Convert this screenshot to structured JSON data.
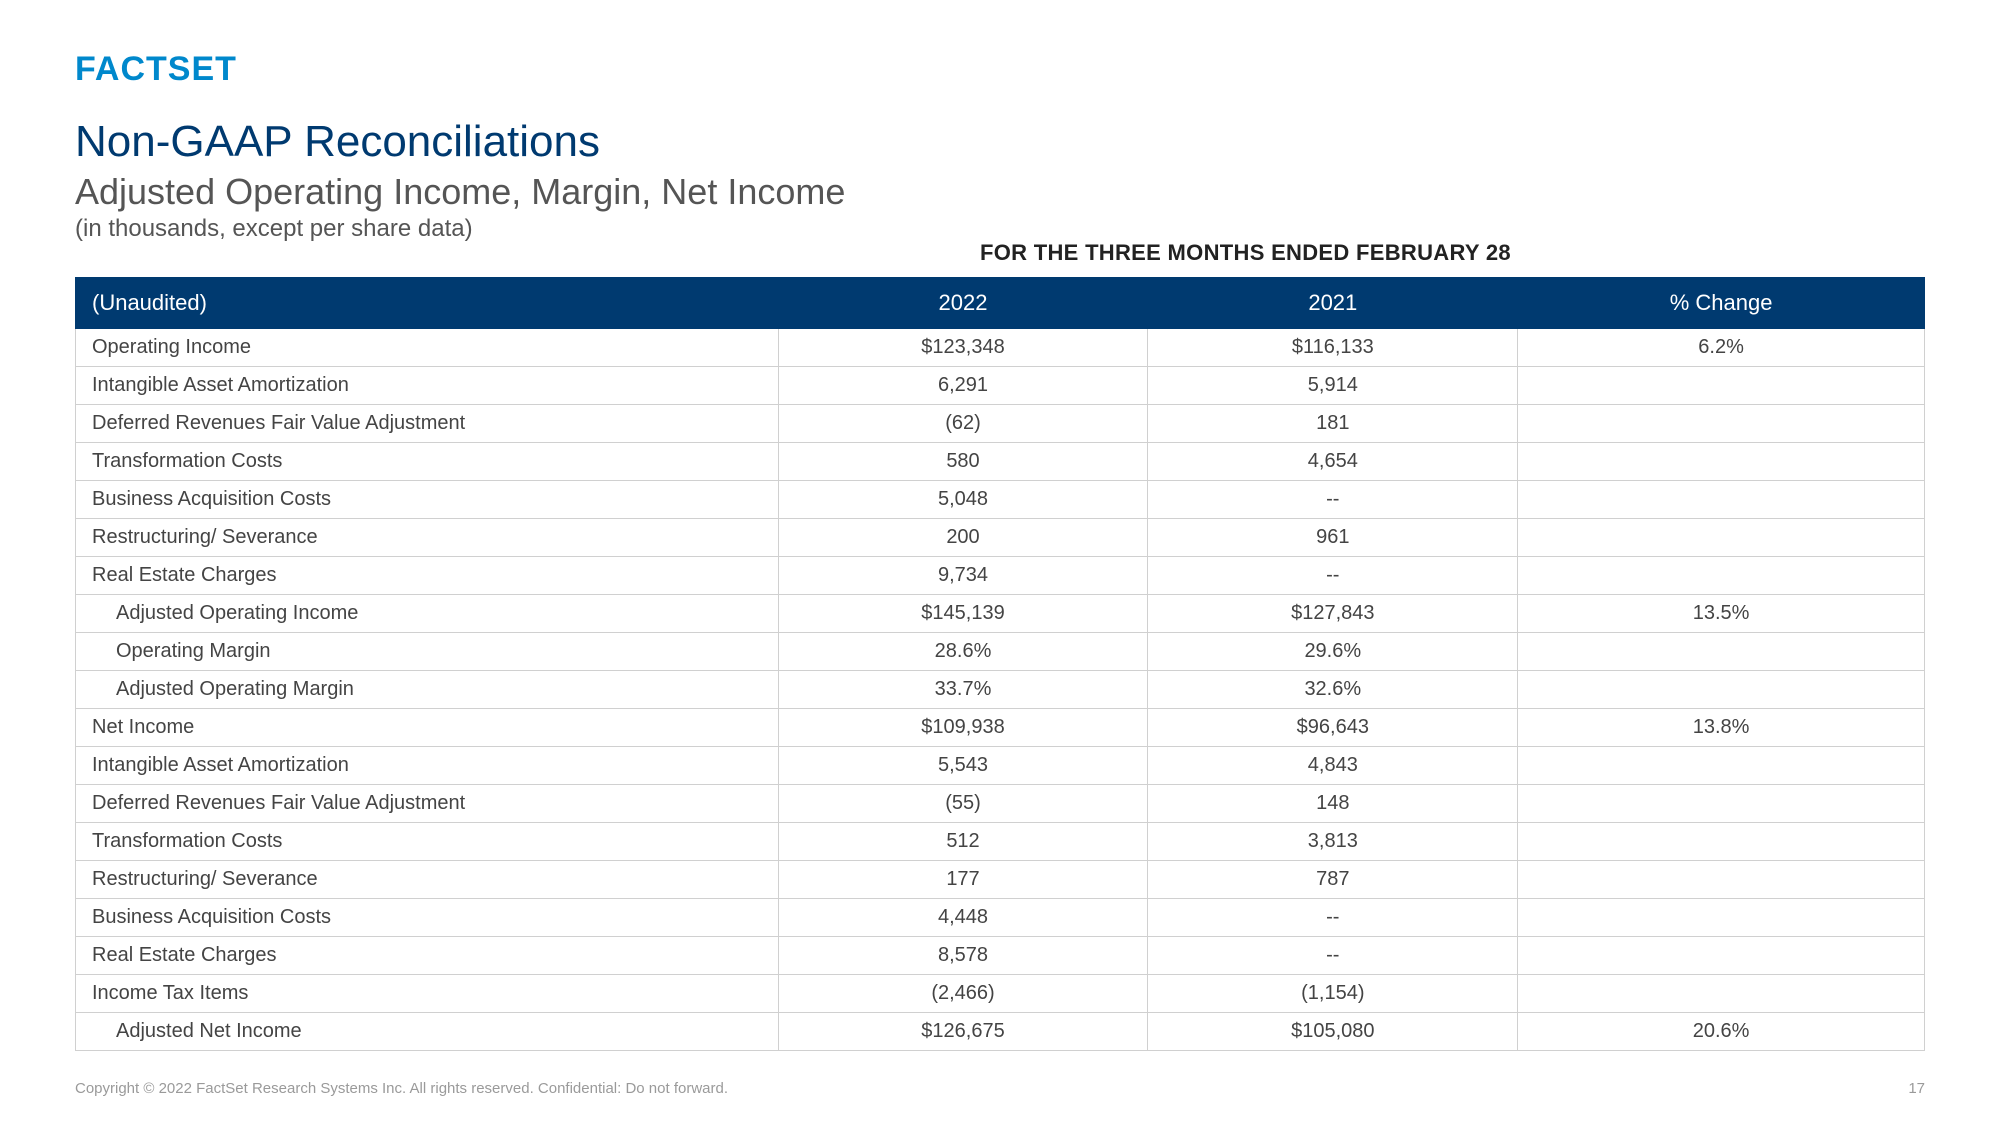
{
  "brand": {
    "logo_text": "FACTSET",
    "logo_color": "#0088cc"
  },
  "heading": {
    "title": "Non-GAAP Reconciliations",
    "subtitle": "Adjusted Operating Income, Margin, Net Income",
    "note": "(in thousands, except per share data)",
    "period_label": "FOR THE THREE MONTHS ENDED FEBRUARY 28"
  },
  "table": {
    "header_bg": "#003a70",
    "border_color": "#d0d0d0",
    "columns": [
      "(Unaudited)",
      "2022",
      "2021",
      "% Change"
    ],
    "rows": [
      {
        "label": "Operating Income",
        "v2022": "$123,348",
        "v2021": "$116,133",
        "change": "6.2%",
        "indent": false
      },
      {
        "label": "Intangible Asset Amortization",
        "v2022": "6,291",
        "v2021": "5,914",
        "change": "",
        "indent": false
      },
      {
        "label": "Deferred Revenues Fair Value Adjustment",
        "v2022": "(62)",
        "v2021": "181",
        "change": "",
        "indent": false
      },
      {
        "label": "Transformation Costs",
        "v2022": "580",
        "v2021": "4,654",
        "change": "",
        "indent": false
      },
      {
        "label": "Business Acquisition Costs",
        "v2022": "5,048",
        "v2021": "--",
        "change": "",
        "indent": false
      },
      {
        "label": "Restructuring/ Severance",
        "v2022": "200",
        "v2021": "961",
        "change": "",
        "indent": false
      },
      {
        "label": "Real Estate Charges",
        "v2022": "9,734",
        "v2021": "--",
        "change": "",
        "indent": false
      },
      {
        "label": "Adjusted Operating Income",
        "v2022": "$145,139",
        "v2021": "$127,843",
        "change": "13.5%",
        "indent": true
      },
      {
        "label": "Operating Margin",
        "v2022": "28.6%",
        "v2021": "29.6%",
        "change": "",
        "indent": true
      },
      {
        "label": "Adjusted Operating Margin",
        "v2022": "33.7%",
        "v2021": "32.6%",
        "change": "",
        "indent": true
      },
      {
        "label": "Net Income",
        "v2022": "$109,938",
        "v2021": "$96,643",
        "change": "13.8%",
        "indent": false
      },
      {
        "label": "Intangible Asset Amortization",
        "v2022": "5,543",
        "v2021": "4,843",
        "change": "",
        "indent": false
      },
      {
        "label": "Deferred Revenues Fair Value Adjustment",
        "v2022": "(55)",
        "v2021": "148",
        "change": "",
        "indent": false
      },
      {
        "label": "Transformation Costs",
        "v2022": "512",
        "v2021": "3,813",
        "change": "",
        "indent": false
      },
      {
        "label": "Restructuring/ Severance",
        "v2022": "177",
        "v2021": "787",
        "change": "",
        "indent": false
      },
      {
        "label": "Business Acquisition Costs",
        "v2022": "4,448",
        "v2021": "--",
        "change": "",
        "indent": false
      },
      {
        "label": "Real Estate Charges",
        "v2022": "8,578",
        "v2021": "--",
        "change": "",
        "indent": false
      },
      {
        "label": "Income Tax Items",
        "v2022": "(2,466)",
        "v2021": "(1,154)",
        "change": "",
        "indent": false
      },
      {
        "label": "Adjusted Net Income",
        "v2022": "$126,675",
        "v2021": "$105,080",
        "change": "20.6%",
        "indent": true
      }
    ]
  },
  "footer": {
    "copyright": "Copyright © 2022 FactSet Research Systems Inc. All rights reserved. Confidential: Do not forward.",
    "page": "17"
  }
}
